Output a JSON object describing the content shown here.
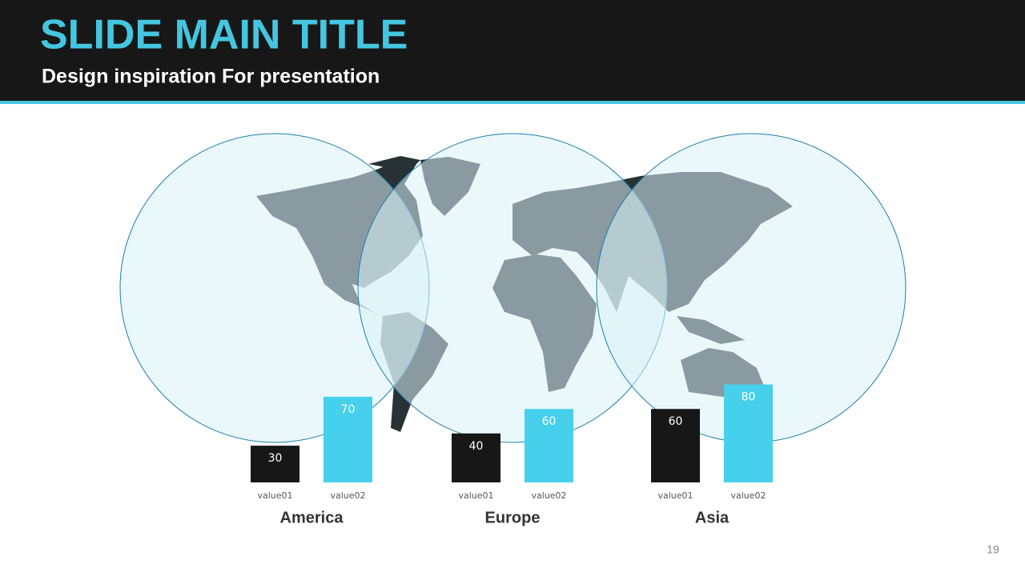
{
  "header": {
    "title": "SLIDE MAIN TITLE",
    "subtitle": "Design inspiration For presentation"
  },
  "chart_data": [
    {
      "type": "bar",
      "title": "America",
      "categories": [
        "value01",
        "value02"
      ],
      "values": [
        30,
        70
      ],
      "colors": [
        "#171717",
        "#47d0eb"
      ]
    },
    {
      "type": "bar",
      "title": "Europe",
      "categories": [
        "value01",
        "value02"
      ],
      "values": [
        40,
        60
      ],
      "colors": [
        "#171717",
        "#47d0eb"
      ]
    },
    {
      "type": "bar",
      "title": "Asia",
      "categories": [
        "value01",
        "value02"
      ],
      "values": [
        60,
        80
      ],
      "colors": [
        "#171717",
        "#47d0eb"
      ]
    }
  ],
  "page_number": "19"
}
